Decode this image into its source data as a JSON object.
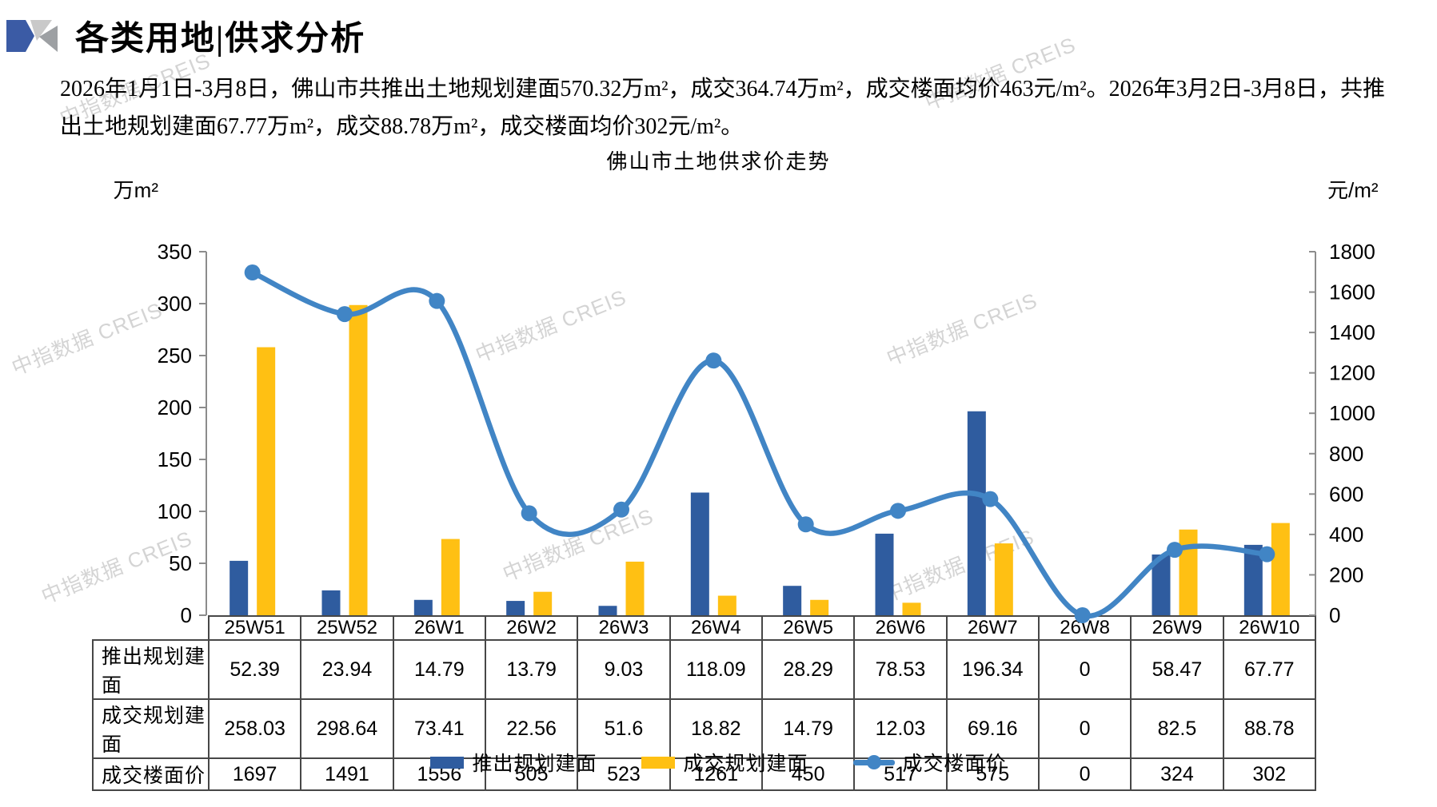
{
  "header": {
    "title": "各类用地|供求分析"
  },
  "summary": {
    "text": "2026年1月1日-3月8日，佛山市共推出土地规划建面570.32万m²，成交364.74万m²，成交楼面均价463元/m²。2026年3月2日-3月8日，共推出土地规划建面67.77万m²，成交88.78万m²，成交楼面均价302元/m²。"
  },
  "watermark": {
    "text": "中指数据 CREIS"
  },
  "chart_data": {
    "type": "bar+line",
    "title": "佛山市土地供求价走势",
    "categories": [
      "25W51",
      "25W52",
      "26W1",
      "26W2",
      "26W3",
      "26W4",
      "26W5",
      "26W6",
      "26W7",
      "26W8",
      "26W9",
      "26W10"
    ],
    "series": [
      {
        "name": "推出规划建面",
        "type": "bar",
        "axis": "left",
        "color": "#2F5C9F",
        "values": [
          52.39,
          23.94,
          14.79,
          13.79,
          9.03,
          118.09,
          28.29,
          78.53,
          196.34,
          0,
          58.47,
          67.77
        ]
      },
      {
        "name": "成交规划建面",
        "type": "bar",
        "axis": "left",
        "color": "#FFC013",
        "values": [
          258.03,
          298.64,
          73.41,
          22.56,
          51.6,
          18.82,
          14.79,
          12.03,
          69.16,
          0,
          82.5,
          88.78
        ]
      },
      {
        "name": "成交楼面价",
        "type": "line",
        "axis": "right",
        "color": "#4185C5",
        "values": [
          1697,
          1491,
          1556,
          505,
          523,
          1261,
          450,
          517,
          575,
          0,
          324,
          302
        ]
      }
    ],
    "left_axis": {
      "unit": "万m²",
      "min": 0,
      "max": 350,
      "step": 50
    },
    "right_axis": {
      "unit": "元/m²",
      "min": 0,
      "max": 1800,
      "step": 200
    },
    "legend_position": "bottom",
    "grid": false,
    "data_table": true
  }
}
